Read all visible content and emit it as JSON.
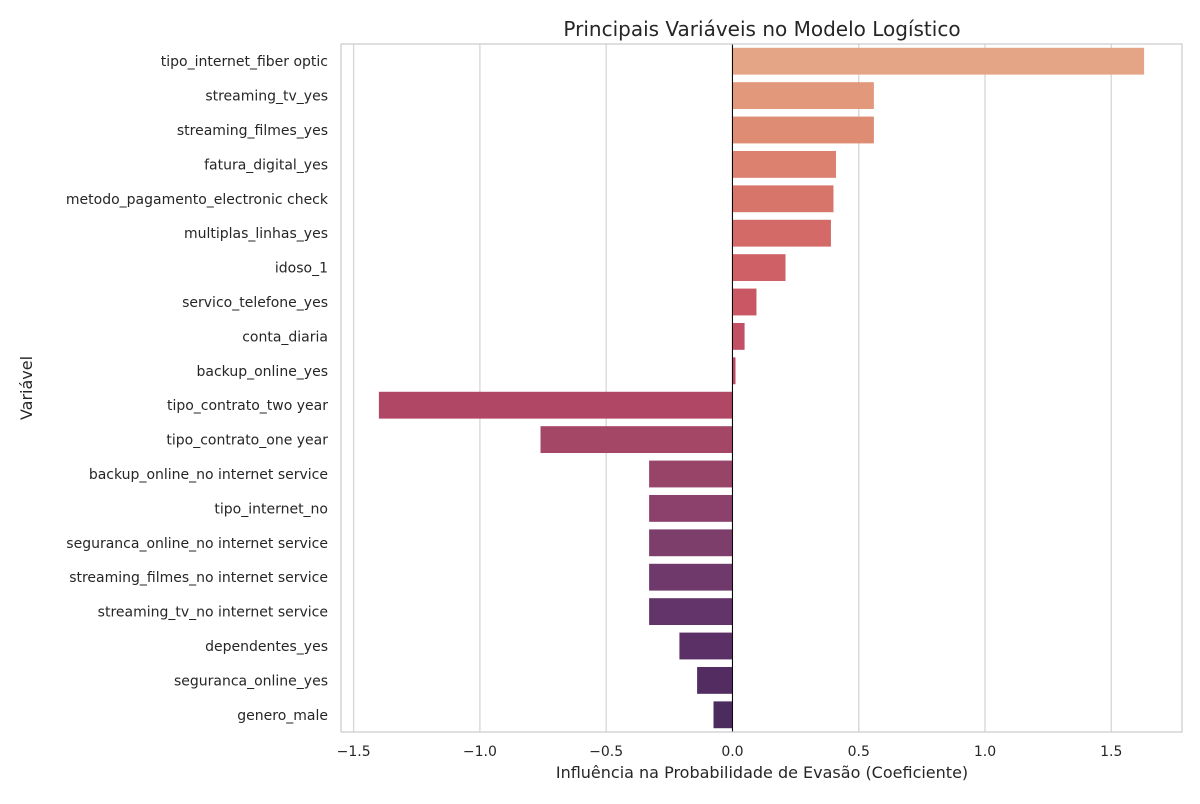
{
  "chart_data": {
    "type": "bar",
    "orientation": "horizontal",
    "title": "Principais Variáveis no Modelo Logístico",
    "xlabel": "Influência na Probabilidade de Evasão (Coeficiente)",
    "ylabel": "Variável",
    "xlim": [
      -1.55,
      1.78
    ],
    "xticks": [
      -1.5,
      -1.0,
      -0.5,
      0.0,
      0.5,
      1.0,
      1.5
    ],
    "xtick_labels": [
      "−1.5",
      "−1.0",
      "−0.5",
      "0.0",
      "0.5",
      "1.0",
      "1.5"
    ],
    "grid": true,
    "zero_line": true,
    "categories": [
      "tipo_internet_fiber optic",
      "streaming_tv_yes",
      "streaming_filmes_yes",
      "fatura_digital_yes",
      "metodo_pagamento_electronic check",
      "multiplas_linhas_yes",
      "idoso_1",
      "servico_telefone_yes",
      "conta_diaria",
      "backup_online_yes",
      "tipo_contrato_two year",
      "tipo_contrato_one year",
      "backup_online_no internet service",
      "tipo_internet_no",
      "seguranca_online_no internet service",
      "streaming_filmes_no internet service",
      "streaming_tv_no internet service",
      "dependentes_yes",
      "seguranca_online_yes",
      "genero_male"
    ],
    "values": [
      1.63,
      0.56,
      0.56,
      0.41,
      0.4,
      0.39,
      0.21,
      0.095,
      0.048,
      0.012,
      -1.4,
      -0.76,
      -0.33,
      -0.33,
      -0.33,
      -0.33,
      -0.33,
      -0.21,
      -0.14,
      -0.075
    ],
    "colors": [
      "#e3a586",
      "#e2987a",
      "#df8c74",
      "#dc806f",
      "#d8756b",
      "#d36a68",
      "#cf6066",
      "#c95764",
      "#c24f63",
      "#ba4963",
      "#b04764",
      "#a44767",
      "#984469",
      "#8b416b",
      "#7d3e6c",
      "#6f396c",
      "#63346a",
      "#5a3066",
      "#532d62",
      "#4c2b5e"
    ]
  }
}
